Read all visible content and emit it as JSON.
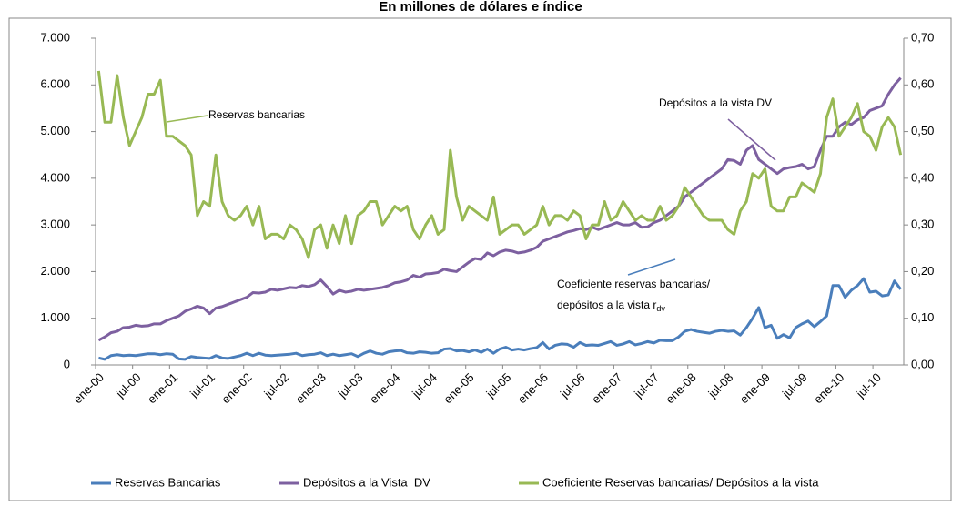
{
  "chart_data": {
    "type": "line",
    "title": "En millones de dólares e índice",
    "categories": [
      "ene-00",
      null,
      null,
      null,
      null,
      null,
      "jul-00",
      null,
      null,
      null,
      null,
      null,
      "ene-01",
      null,
      null,
      null,
      null,
      null,
      "jul-01",
      null,
      null,
      null,
      null,
      null,
      "ene-02",
      null,
      null,
      null,
      null,
      null,
      "jul-02",
      null,
      null,
      null,
      null,
      null,
      "ene-03",
      null,
      null,
      null,
      null,
      null,
      "jul-03",
      null,
      null,
      null,
      null,
      null,
      "ene-04",
      null,
      null,
      null,
      null,
      null,
      "jul-04",
      null,
      null,
      null,
      null,
      null,
      "ene-05",
      null,
      null,
      null,
      null,
      null,
      "jul-05",
      null,
      null,
      null,
      null,
      null,
      "ene-06",
      null,
      null,
      null,
      null,
      null,
      "jul-06",
      null,
      null,
      null,
      null,
      null,
      "ene-07",
      null,
      null,
      null,
      null,
      null,
      "jul-07",
      null,
      null,
      null,
      null,
      null,
      "ene-08",
      null,
      null,
      null,
      null,
      null,
      "jul-08",
      null,
      null,
      null,
      null,
      null,
      "ene-09",
      null,
      null,
      null,
      null,
      null,
      "jul-09",
      null,
      null,
      null,
      null,
      null,
      "ene-10",
      null,
      null,
      null,
      null,
      null,
      "jul-10",
      null,
      null,
      null,
      null
    ],
    "series": [
      {
        "name": "Reservas Bancarias",
        "color": "#4a7ebb",
        "values": [
          150,
          120,
          200,
          220,
          200,
          210,
          200,
          220,
          240,
          240,
          220,
          240,
          230,
          130,
          120,
          180,
          160,
          150,
          140,
          200,
          150,
          140,
          170,
          200,
          250,
          200,
          250,
          210,
          200,
          210,
          220,
          230,
          250,
          200,
          220,
          230,
          260,
          200,
          230,
          200,
          220,
          240,
          180,
          250,
          300,
          250,
          230,
          280,
          300,
          310,
          260,
          250,
          280,
          270,
          250,
          260,
          340,
          350,
          300,
          310,
          280,
          320,
          270,
          340,
          250,
          340,
          380,
          320,
          340,
          320,
          350,
          370,
          480,
          340,
          420,
          450,
          440,
          380,
          480,
          420,
          430,
          420,
          460,
          500,
          420,
          450,
          500,
          430,
          460,
          500,
          470,
          530,
          520,
          520,
          600,
          720,
          760,
          720,
          700,
          680,
          720,
          740,
          720,
          730,
          640,
          800,
          1000,
          1230,
          800,
          850,
          570,
          650,
          580,
          800,
          880,
          940,
          820,
          930,
          1050,
          1700,
          1700,
          1450,
          1600,
          1700,
          1850,
          1560,
          1580,
          1480,
          1500,
          1800,
          1620
        ]
      },
      {
        "name": "Depósitos a la Vista  DV",
        "color": "#7d60a0",
        "values": [
          530,
          600,
          690,
          720,
          800,
          810,
          850,
          830,
          840,
          880,
          880,
          950,
          1000,
          1050,
          1150,
          1200,
          1260,
          1220,
          1100,
          1220,
          1250,
          1300,
          1350,
          1400,
          1450,
          1550,
          1540,
          1560,
          1620,
          1600,
          1630,
          1660,
          1650,
          1700,
          1680,
          1720,
          1820,
          1680,
          1520,
          1600,
          1560,
          1580,
          1620,
          1600,
          1620,
          1640,
          1660,
          1700,
          1760,
          1780,
          1820,
          1920,
          1880,
          1950,
          1960,
          1980,
          2050,
          2020,
          2000,
          2100,
          2200,
          2280,
          2260,
          2400,
          2340,
          2420,
          2460,
          2440,
          2400,
          2420,
          2460,
          2520,
          2650,
          2700,
          2750,
          2800,
          2850,
          2880,
          2920,
          2900,
          2950,
          2900,
          2950,
          3000,
          3050,
          3000,
          3000,
          3050,
          2950,
          2960,
          3050,
          3100,
          3200,
          3300,
          3400,
          3600,
          3700,
          3800,
          3900,
          4000,
          4100,
          4200,
          4400,
          4380,
          4300,
          4600,
          4700,
          4400,
          4300,
          4200,
          4100,
          4200,
          4230,
          4250,
          4300,
          4200,
          4250,
          4600,
          4900,
          4900,
          5100,
          5200,
          5150,
          5250,
          5300,
          5450,
          5500,
          5550,
          5800,
          6000,
          6150
        ]
      },
      {
        "name": "Coeficiente Reservas bancarias/ Depósitos a la vista",
        "color": "#98b954",
        "axis": "y2",
        "values": [
          0.63,
          0.52,
          0.52,
          0.62,
          0.53,
          0.47,
          0.5,
          0.53,
          0.58,
          0.58,
          0.61,
          0.49,
          0.49,
          0.48,
          0.47,
          0.45,
          0.32,
          0.35,
          0.34,
          0.45,
          0.35,
          0.32,
          0.31,
          0.32,
          0.34,
          0.3,
          0.34,
          0.27,
          0.28,
          0.28,
          0.27,
          0.3,
          0.29,
          0.27,
          0.23,
          0.29,
          0.3,
          0.25,
          0.3,
          0.26,
          0.32,
          0.26,
          0.32,
          0.33,
          0.35,
          0.35,
          0.3,
          0.32,
          0.34,
          0.33,
          0.34,
          0.29,
          0.27,
          0.3,
          0.32,
          0.28,
          0.29,
          0.46,
          0.36,
          0.31,
          0.34,
          0.33,
          0.32,
          0.31,
          0.36,
          0.28,
          0.29,
          0.3,
          0.3,
          0.28,
          0.29,
          0.3,
          0.34,
          0.3,
          0.32,
          0.32,
          0.31,
          0.33,
          0.32,
          0.27,
          0.3,
          0.3,
          0.35,
          0.31,
          0.32,
          0.35,
          0.33,
          0.31,
          0.32,
          0.31,
          0.31,
          0.34,
          0.31,
          0.32,
          0.34,
          0.38,
          0.36,
          0.34,
          0.32,
          0.31,
          0.31,
          0.31,
          0.29,
          0.28,
          0.33,
          0.35,
          0.41,
          0.4,
          0.42,
          0.34,
          0.33,
          0.33,
          0.36,
          0.36,
          0.39,
          0.38,
          0.37,
          0.41,
          0.53,
          0.57,
          0.49,
          0.51,
          0.53,
          0.56,
          0.5,
          0.49,
          0.46,
          0.51,
          0.53,
          0.51,
          0.45
        ]
      }
    ],
    "ylim": [
      0,
      7000
    ],
    "yticks": [
      {
        "value": 0,
        "label": "0"
      },
      {
        "value": 1000,
        "label": "1.000"
      },
      {
        "value": 2000,
        "label": "2.000"
      },
      {
        "value": 3000,
        "label": "3.000"
      },
      {
        "value": 4000,
        "label": "4.000"
      },
      {
        "value": 5000,
        "label": "5.000"
      },
      {
        "value": 6000,
        "label": "6.000"
      },
      {
        "value": 7000,
        "label": "7.000"
      }
    ],
    "y2lim": [
      0,
      0.7
    ],
    "y2ticks": [
      {
        "value": 0,
        "label": "0,00"
      },
      {
        "value": 0.1,
        "label": "0,10"
      },
      {
        "value": 0.2,
        "label": "0,20"
      },
      {
        "value": 0.3,
        "label": "0,30"
      },
      {
        "value": 0.4,
        "label": "0,40"
      },
      {
        "value": 0.5,
        "label": "0,50"
      },
      {
        "value": 0.6,
        "label": "0,60"
      },
      {
        "value": 0.7,
        "label": "0,70"
      }
    ],
    "grid": false,
    "legend": "bottom",
    "annotations": [
      "Reservas bancarias",
      "Depósitos a la vista DV",
      "Coeficiente reservas bancarias/",
      "depósitos a la vista r",
      "dv"
    ]
  }
}
